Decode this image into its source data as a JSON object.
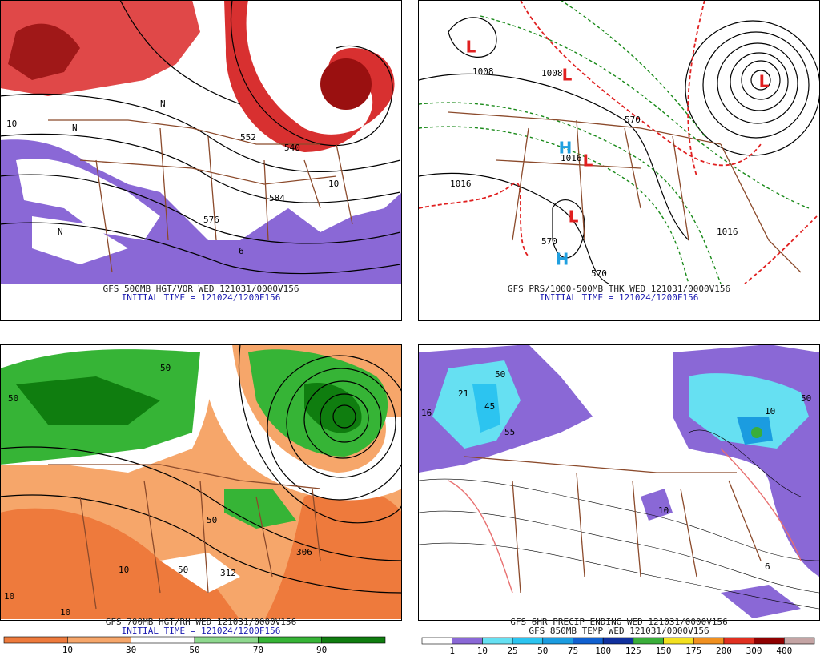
{
  "panels": [
    {
      "caption": "GFS 500MB HGT/VOR WED 121031/0000V156",
      "subcaption": "INITIAL TIME = 121024/1200F156",
      "labels": [
        "552",
        "576",
        "584",
        "N",
        "N",
        "N",
        "10",
        "10",
        "540",
        "6"
      ]
    },
    {
      "caption": "GFS PRS/1000-500MB THK WED 121031/0000V156",
      "subcaption": "INITIAL TIME = 121024/1200F156",
      "labels": [
        "L",
        "L",
        "L",
        "L",
        "L",
        "H",
        "H",
        "1016",
        "1016",
        "1008",
        "1008",
        "1016",
        "570",
        "570",
        "570"
      ]
    },
    {
      "caption": "GFS 700MB HGT/RH WED 121031/0000V156",
      "subcaption": "INITIAL TIME = 121024/1200F156",
      "labels": [
        "50",
        "50",
        "50",
        "50",
        "306",
        "312",
        "10",
        "10",
        "10"
      ],
      "colorbar": {
        "labels": [
          "10",
          "30",
          "50",
          "70",
          "90"
        ],
        "colors": [
          "#ee7a3c",
          "#f6a66a",
          "#ffffff",
          "#8ed88e",
          "#36b436",
          "#0f7d0f"
        ]
      }
    },
    {
      "caption": "GFS 6HR PRECIP ENDING WED 121031/0000V156",
      "subcaption": "GFS 850MB TEMP WED 121031/0000V156",
      "labels": [
        "21",
        "45",
        "50",
        "55",
        "16",
        "10",
        "6",
        "50",
        "10"
      ],
      "colorbar": {
        "labels": [
          "1",
          "10",
          "25",
          "50",
          "75",
          "100",
          "125",
          "150",
          "175",
          "200",
          "300",
          "400"
        ],
        "colors": [
          "#ffffff",
          "#8a68d6",
          "#66e0f2",
          "#2cc4f0",
          "#1b9ce0",
          "#1060d0",
          "#10309e",
          "#3aae3a",
          "#f2e020",
          "#f09020",
          "#e03020",
          "#8e0000",
          "#c4a4a4"
        ]
      }
    }
  ]
}
